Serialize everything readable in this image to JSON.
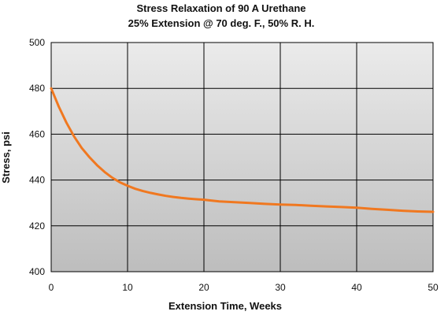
{
  "chart_data": {
    "type": "line",
    "title": "Stress Relaxation of 90 A Urethane",
    "subtitle": "25% Extension @ 70 deg. F., 50% R. H.",
    "xlabel": "Extension Time, Weeks",
    "ylabel": "Stress, psi",
    "xlim": [
      0,
      50
    ],
    "ylim": [
      400,
      500
    ],
    "xticks": [
      "0",
      "10",
      "20",
      "30",
      "40",
      "50"
    ],
    "yticks": [
      "400",
      "420",
      "440",
      "460",
      "480",
      "500"
    ],
    "grid": true,
    "legend": "none",
    "colors": {
      "line": "#f07820",
      "grid": "#000000",
      "plot_bg_top": "#ebebeb",
      "plot_bg_bottom": "#bdbdbd"
    },
    "series": [
      {
        "x": [
          0,
          1,
          2,
          3,
          4,
          5,
          6,
          7,
          8,
          9,
          10,
          11,
          12,
          13,
          14,
          15,
          16,
          17,
          18,
          19,
          20,
          22,
          24,
          26,
          28,
          30,
          32,
          34,
          36,
          38,
          40,
          42,
          44,
          46,
          48,
          50
        ],
        "values": [
          480,
          472,
          465,
          459,
          454,
          450,
          446.5,
          443.5,
          441,
          439,
          437.5,
          436.2,
          435.2,
          434.4,
          433.7,
          433.1,
          432.6,
          432.2,
          431.9,
          431.6,
          431.4,
          430.7,
          430.3,
          430,
          429.6,
          429.3,
          429.1,
          428.8,
          428.5,
          428.2,
          427.9,
          427.4,
          427,
          426.6,
          426.3,
          426.1
        ]
      }
    ]
  }
}
